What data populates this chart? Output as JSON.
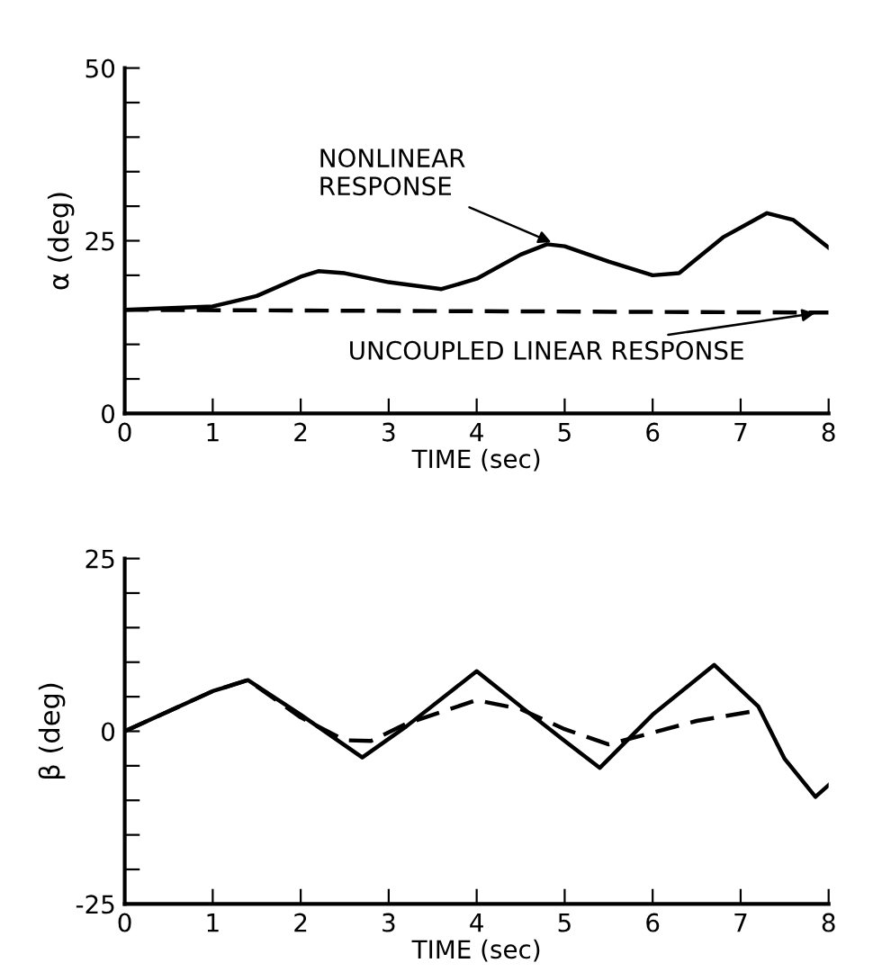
{
  "chart_data": [
    {
      "type": "line",
      "xlabel": "TIME (sec)",
      "ylabel": "α (deg)",
      "xlim": [
        0,
        8
      ],
      "ylim": [
        0,
        50
      ],
      "xticks": [
        0,
        1,
        2,
        3,
        4,
        5,
        6,
        7,
        8
      ],
      "yticks": [
        0,
        {
          "value": 5,
          "label": null
        },
        {
          "value": 10,
          "label": null
        },
        {
          "value": 15,
          "label": null
        },
        {
          "value": 20,
          "label": null
        },
        25,
        {
          "value": 30,
          "label": null
        },
        {
          "value": 35,
          "label": null
        },
        {
          "value": 40,
          "label": null
        },
        {
          "value": 45,
          "label": null
        },
        50
      ],
      "grid": false,
      "series": [
        {
          "color": "#000000",
          "line_style": "solid",
          "x": [
            0,
            1,
            1.5,
            2,
            2.2,
            2.5,
            3,
            3.6,
            4,
            4.5,
            4.8,
            5,
            5.5,
            6,
            6.3,
            6.8,
            7.3,
            7.6,
            8
          ],
          "values": [
            15,
            15.5,
            17,
            19.8,
            20.6,
            20.3,
            19,
            18,
            19.5,
            23,
            24.5,
            24.2,
            22,
            20,
            20.3,
            25.5,
            29,
            28,
            24
          ]
        },
        {
          "color": "#000000",
          "line_style": "dashed",
          "x": [
            0,
            8
          ],
          "values": [
            15,
            14.6
          ]
        }
      ],
      "annotations": [
        {
          "text": "NONLINEAR\nRESPONSE",
          "x": 4.9,
          "y": 24.5
        },
        {
          "text": "UNCOUPLED LINEAR RESPONSE",
          "x": 7.9,
          "y": 14.6
        }
      ]
    },
    {
      "type": "line",
      "xlabel": "TIME (sec)",
      "ylabel": "β (deg)",
      "xlim": [
        0,
        8
      ],
      "ylim": [
        -25,
        25
      ],
      "xticks": [
        0,
        1,
        2,
        3,
        4,
        5,
        6,
        7,
        8
      ],
      "yticks": [
        -25,
        {
          "value": -20,
          "label": null
        },
        {
          "value": -15,
          "label": null
        },
        {
          "value": -10,
          "label": null
        },
        {
          "value": -5,
          "label": null
        },
        0,
        {
          "value": 5,
          "label": null
        },
        {
          "value": 10,
          "label": null
        },
        {
          "value": 15,
          "label": null
        },
        {
          "value": 20,
          "label": null
        },
        25
      ],
      "grid": false,
      "series": [
        {
          "color": "#000000",
          "line_style": "solid",
          "x": [
            0,
            1,
            1.4,
            2,
            2.7,
            3.2,
            4,
            4.5,
            5,
            5.4,
            6,
            6.7,
            7.2,
            7.5,
            7.85,
            8
          ],
          "values": [
            0,
            5.8,
            7.4,
            2.4,
            -3.8,
            0.7,
            8.7,
            3.6,
            -1.4,
            -5.3,
            2.4,
            9.6,
            3.6,
            -4,
            -9.5,
            -7.8
          ]
        },
        {
          "color": "#000000",
          "line_style": "dashed",
          "x": [
            0,
            1,
            1.4,
            2,
            2.5,
            2.8,
            3.2,
            4,
            4.5,
            5,
            5.5,
            6,
            6.5,
            7.1
          ],
          "values": [
            0,
            5.8,
            7.4,
            2,
            -1.3,
            -1.4,
            1.1,
            4.5,
            3.2,
            0.3,
            -1.9,
            -0.2,
            1.5,
            2.8
          ]
        }
      ]
    }
  ]
}
